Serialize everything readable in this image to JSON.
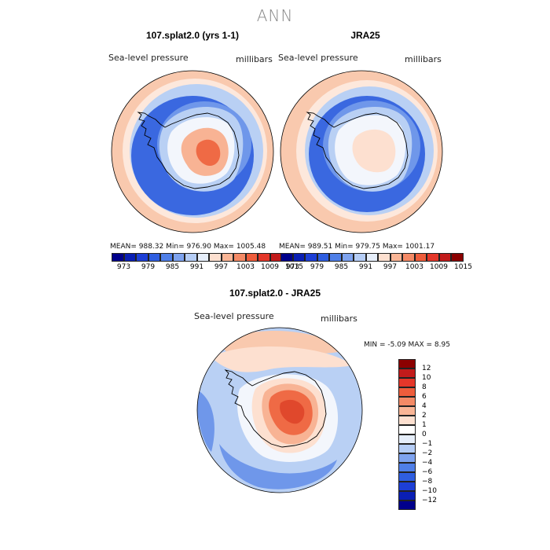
{
  "title": "ANN",
  "panels": [
    {
      "title": "107.splat2.0 (yrs 1-1)",
      "variable": "Sea-level pressure",
      "units": "millibars",
      "stats": "MEAN= 988.32   Min= 976.90   Max= 1005.48"
    },
    {
      "title": "JRA25",
      "variable": "Sea-level pressure",
      "units": "millibars",
      "stats": "MEAN= 989.51   Min= 979.75   Max= 1001.17"
    }
  ],
  "diff_panel": {
    "title": "107.splat2.0 - JRA25",
    "variable": "Sea-level pressure",
    "units": "millibars",
    "stats": "MIN =   -5.09 MAX =    8.95"
  },
  "colorbar": {
    "colors": [
      "#00008b",
      "#0a1fb4",
      "#1d3fd6",
      "#2f5ee0",
      "#4f7fe8",
      "#7ea3ef",
      "#b5cdf6",
      "#e6eefa",
      "#fde0d0",
      "#f9b596",
      "#f48a66",
      "#ee5d3c",
      "#e4372a",
      "#c21b1b",
      "#8b0000"
    ],
    "ticks": [
      "973",
      "979",
      "985",
      "991",
      "997",
      "1003",
      "1009",
      "1015"
    ]
  },
  "diff_colorbar": {
    "colors": [
      "#8b0000",
      "#c21b1b",
      "#e4372a",
      "#ee5d3c",
      "#f48a66",
      "#f9b596",
      "#fde0d0",
      "#ffffff",
      "#e6eefa",
      "#b5cdf6",
      "#7ea3ef",
      "#4f7fe8",
      "#2f5ee0",
      "#1d3fd6",
      "#0a1fb4",
      "#00008b"
    ],
    "ticks": [
      "12",
      "10",
      "8",
      "6",
      "4",
      "2",
      "1",
      "0",
      "−1",
      "−2",
      "−4",
      "−6",
      "−8",
      "−10",
      "−12"
    ]
  },
  "map_colors": {
    "ring_warm": "#f9c9ae",
    "ring_pale": "#fde8dc",
    "light_blue": "#b9d0f4",
    "mid_blue": "#6f97ea",
    "deep_blue": "#3a68e0",
    "land_pink": "#f8b394",
    "land_red": "#ef6a45",
    "land_deep": "#e0482c",
    "white": "#f3f6fc"
  }
}
